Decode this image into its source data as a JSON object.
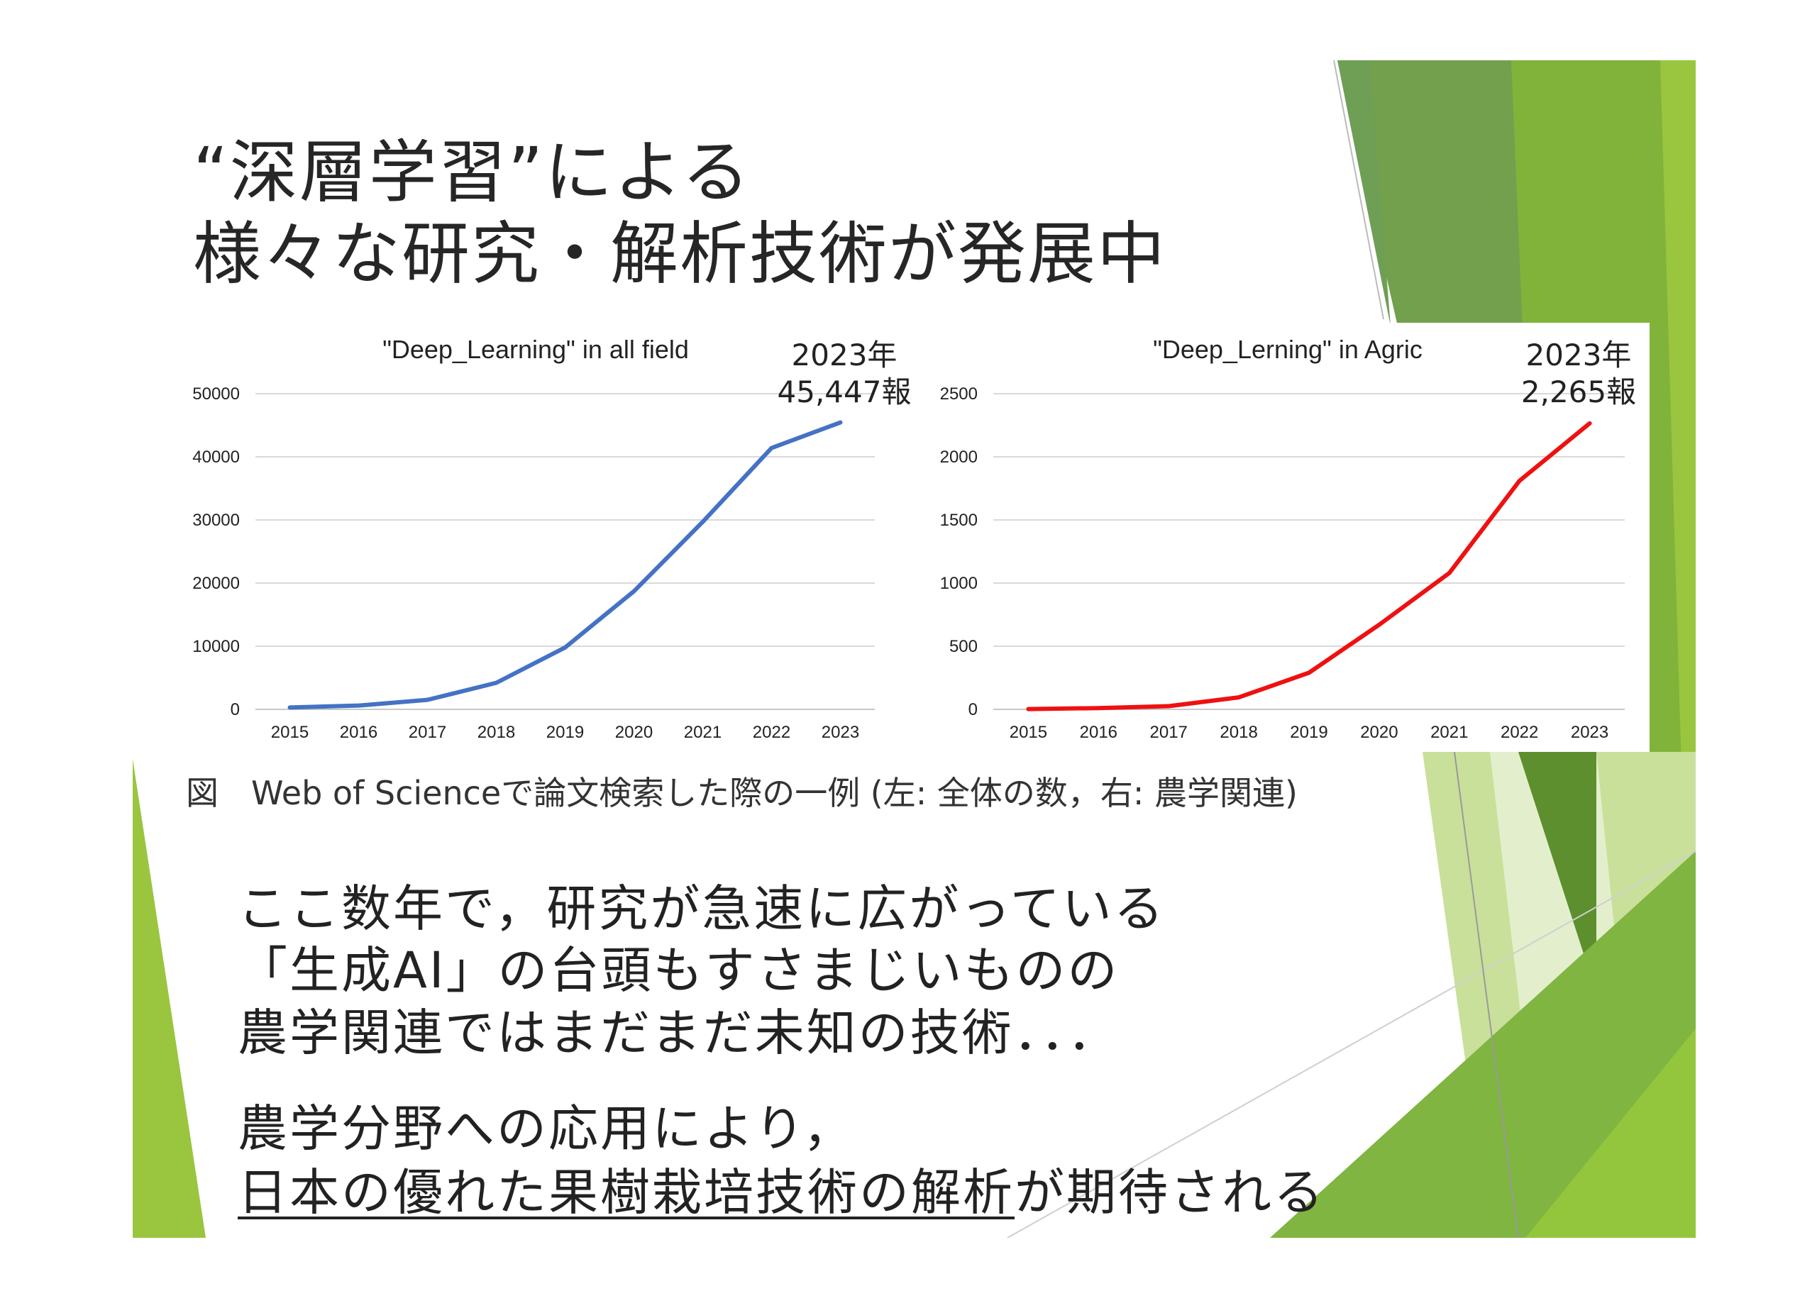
{
  "slide": {
    "title_lines": [
      "“深層学習”による",
      "様々な研究・解析技術が発展中"
    ],
    "caption": "図　Web of Scienceで論文検索した際の一例 (左: 全体の数，右: 農学関連)",
    "body_paragraph1": [
      "ここ数年で，研究が急速に広がっている",
      "「生成AI」の台頭もすさまじいものの",
      "農学関連ではまだまだ未知の技術．．．"
    ],
    "body_paragraph2_line1": "農学分野への応用により，",
    "body_paragraph2_line2_underlined": "日本の優れた果樹栽培技術の解析",
    "body_paragraph2_line2_rest": "が期待される",
    "colors": {
      "green_dark": "#5b8c2a",
      "green_light": "#9ac53f",
      "green_pale": "#d6e8b0",
      "line_blue": "#4472c4",
      "line_red": "#ee1111"
    }
  },
  "chart_data": [
    {
      "type": "line",
      "title": "\"Deep_Learning\" in all field",
      "x": [
        "2015",
        "2016",
        "2017",
        "2018",
        "2019",
        "2020",
        "2021",
        "2022",
        "2023"
      ],
      "series": [
        {
          "values": [
            300,
            600,
            1500,
            4200,
            9800,
            18700,
            29700,
            41400,
            45447
          ],
          "color": "#4472c4"
        }
      ],
      "yticks": [
        "0",
        "10000",
        "20000",
        "30000",
        "40000",
        "50000"
      ],
      "ylim": [
        0,
        50000
      ],
      "grid": true,
      "annotation": [
        "2023年",
        "45,447報"
      ]
    },
    {
      "type": "line",
      "title": "\"Deep_Lerning\" in Agric",
      "x": [
        "2015",
        "2016",
        "2017",
        "2018",
        "2019",
        "2020",
        "2021",
        "2022",
        "2023"
      ],
      "series": [
        {
          "values": [
            2,
            10,
            25,
            95,
            290,
            670,
            1080,
            1810,
            2265
          ],
          "color": "#ee1111"
        }
      ],
      "yticks": [
        "0",
        "500",
        "1000",
        "1500",
        "2000",
        "2500"
      ],
      "ylim": [
        0,
        2500
      ],
      "grid": true,
      "annotation": [
        "2023年",
        "2,265報"
      ]
    }
  ]
}
